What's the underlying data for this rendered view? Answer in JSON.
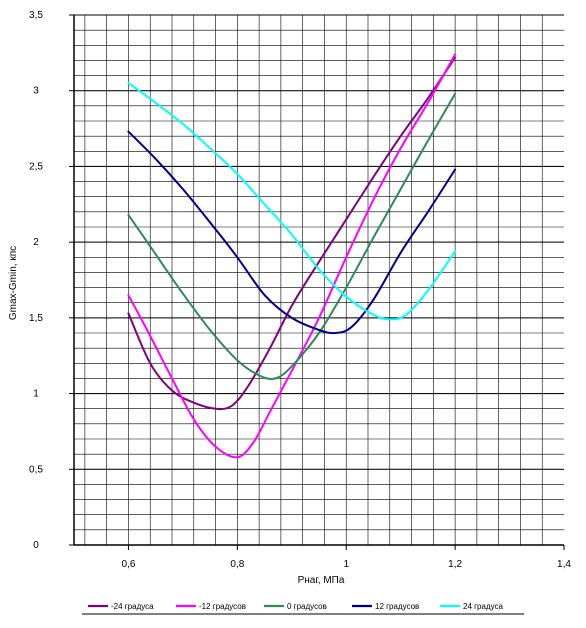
{
  "chart_data": {
    "type": "line",
    "title": "",
    "xlabel": "Рнаг, МПа",
    "ylabel": "Gmax-Gmin, кпс",
    "xlim": [
      0.5,
      1.4
    ],
    "ylim": [
      0,
      3.5
    ],
    "x_ticks": [
      {
        "value": 0.6,
        "label": "0,6"
      },
      {
        "value": 0.8,
        "label": "0,8"
      },
      {
        "value": 1.0,
        "label": "1"
      },
      {
        "value": 1.2,
        "label": "1,2"
      },
      {
        "value": 1.4,
        "label": "1,4"
      }
    ],
    "y_ticks": [
      {
        "value": 0,
        "label": "0"
      },
      {
        "value": 0.5,
        "label": "0,5"
      },
      {
        "value": 1.0,
        "label": "1"
      },
      {
        "value": 1.5,
        "label": "1,5"
      },
      {
        "value": 2.0,
        "label": "2"
      },
      {
        "value": 2.5,
        "label": "2,5"
      },
      {
        "value": 3.0,
        "label": "3"
      },
      {
        "value": 3.5,
        "label": "3,5"
      }
    ],
    "grid": true,
    "legend_position": "bottom",
    "series": [
      {
        "name": "-24 градуса",
        "color": "#800080",
        "points": [
          [
            0.6,
            1.53
          ],
          [
            0.64,
            1.2
          ],
          [
            0.68,
            1.02
          ],
          [
            0.72,
            0.94
          ],
          [
            0.76,
            0.9
          ],
          [
            0.79,
            0.92
          ],
          [
            0.82,
            1.05
          ],
          [
            0.86,
            1.3
          ],
          [
            0.9,
            1.58
          ],
          [
            0.95,
            1.87
          ],
          [
            1.0,
            2.15
          ],
          [
            1.05,
            2.43
          ],
          [
            1.1,
            2.7
          ],
          [
            1.15,
            2.95
          ],
          [
            1.2,
            3.22
          ]
        ]
      },
      {
        "name": "-12 градусов",
        "color": "#ff00ff",
        "points": [
          [
            0.6,
            1.65
          ],
          [
            0.64,
            1.38
          ],
          [
            0.68,
            1.1
          ],
          [
            0.72,
            0.83
          ],
          [
            0.76,
            0.65
          ],
          [
            0.8,
            0.58
          ],
          [
            0.83,
            0.68
          ],
          [
            0.86,
            0.88
          ],
          [
            0.9,
            1.15
          ],
          [
            0.95,
            1.5
          ],
          [
            1.0,
            1.9
          ],
          [
            1.05,
            2.28
          ],
          [
            1.1,
            2.62
          ],
          [
            1.15,
            2.92
          ],
          [
            1.2,
            3.24
          ]
        ]
      },
      {
        "name": "0 градусов",
        "color": "#2e8b57",
        "points": [
          [
            0.6,
            2.18
          ],
          [
            0.65,
            1.92
          ],
          [
            0.7,
            1.66
          ],
          [
            0.75,
            1.42
          ],
          [
            0.8,
            1.22
          ],
          [
            0.84,
            1.12
          ],
          [
            0.87,
            1.1
          ],
          [
            0.9,
            1.18
          ],
          [
            0.95,
            1.4
          ],
          [
            1.0,
            1.7
          ],
          [
            1.05,
            2.03
          ],
          [
            1.1,
            2.35
          ],
          [
            1.15,
            2.67
          ],
          [
            1.2,
            2.98
          ]
        ]
      },
      {
        "name": "12 градусов",
        "color": "#00008b",
        "points": [
          [
            0.6,
            2.73
          ],
          [
            0.65,
            2.55
          ],
          [
            0.7,
            2.35
          ],
          [
            0.75,
            2.13
          ],
          [
            0.8,
            1.9
          ],
          [
            0.85,
            1.65
          ],
          [
            0.9,
            1.5
          ],
          [
            0.95,
            1.42
          ],
          [
            0.98,
            1.4
          ],
          [
            1.01,
            1.44
          ],
          [
            1.05,
            1.62
          ],
          [
            1.1,
            1.93
          ],
          [
            1.15,
            2.2
          ],
          [
            1.2,
            2.48
          ]
        ]
      },
      {
        "name": "24 градуса",
        "color": "#00ffff",
        "points": [
          [
            0.6,
            3.05
          ],
          [
            0.65,
            2.92
          ],
          [
            0.7,
            2.78
          ],
          [
            0.75,
            2.62
          ],
          [
            0.8,
            2.45
          ],
          [
            0.85,
            2.25
          ],
          [
            0.9,
            2.05
          ],
          [
            0.95,
            1.82
          ],
          [
            1.0,
            1.64
          ],
          [
            1.05,
            1.52
          ],
          [
            1.08,
            1.49
          ],
          [
            1.11,
            1.52
          ],
          [
            1.15,
            1.68
          ],
          [
            1.2,
            1.94
          ]
        ]
      }
    ]
  }
}
